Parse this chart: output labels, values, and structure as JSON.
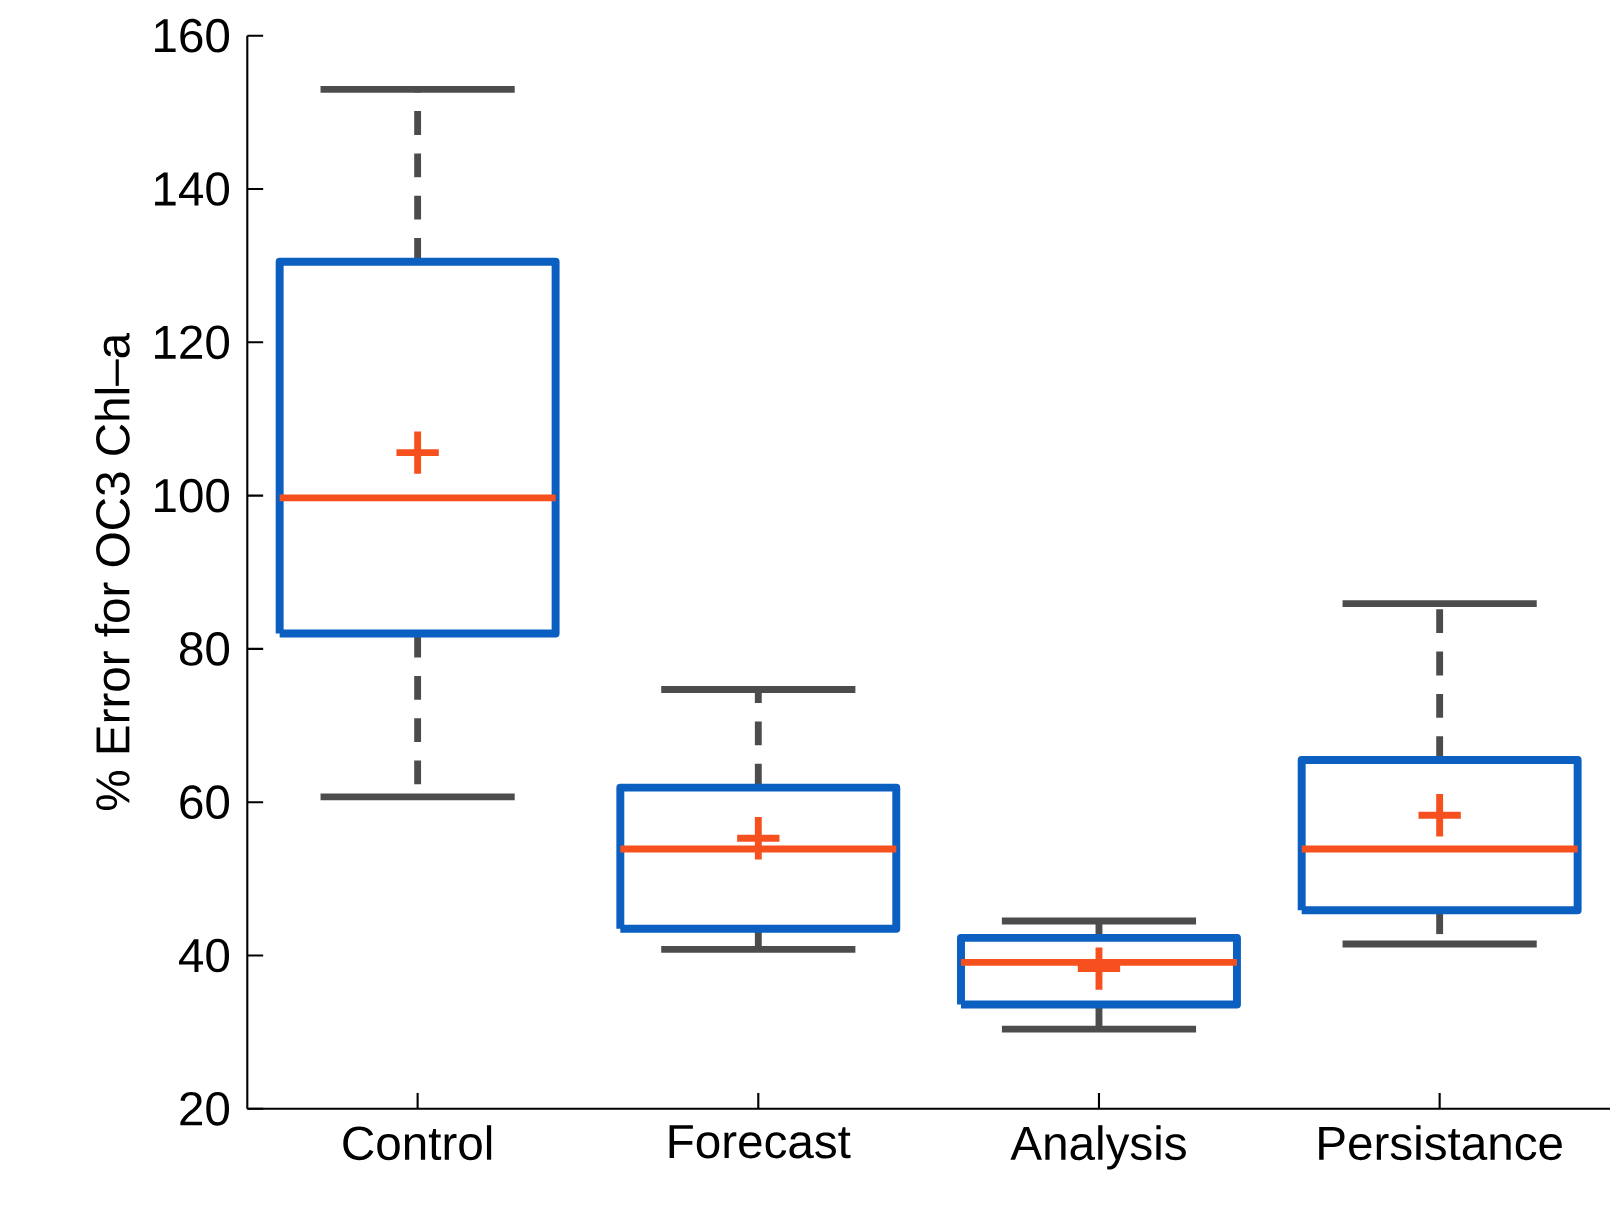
{
  "chart_data": {
    "type": "box",
    "ylabel": "% Error for OC3 Chl–a",
    "categories": [
      "Control",
      "Forecast",
      "Analysis",
      "Persistance"
    ],
    "ylim": [
      20,
      160
    ],
    "yticks": [
      20,
      40,
      60,
      80,
      100,
      120,
      140,
      160
    ],
    "grid": false,
    "series": [
      {
        "color": "#0a5fc0",
        "boxes": [
          {
            "low": 60.7,
            "q1": 82,
            "median": 99.7,
            "q3": 130.5,
            "high": 153,
            "mean": 105.6
          },
          {
            "low": 40.8,
            "q1": 43.5,
            "median": 53.9,
            "q3": 61.9,
            "high": 74.7,
            "mean": 55.3
          },
          {
            "low": 30.4,
            "q1": 33.6,
            "median": 39.1,
            "q3": 42.3,
            "high": 44.5,
            "mean": 38.3
          },
          {
            "low": 41.5,
            "q1": 45.9,
            "median": 53.9,
            "q3": 65.5,
            "high": 85.9,
            "mean": 58.3
          }
        ]
      }
    ]
  }
}
